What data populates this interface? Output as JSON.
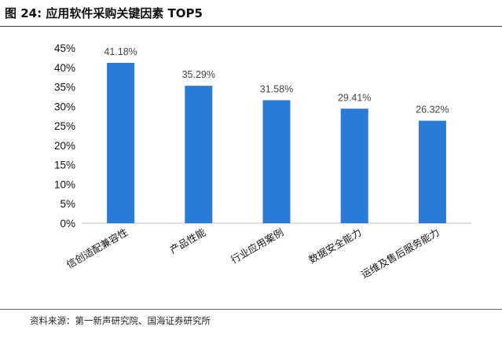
{
  "figure": {
    "title": "图 24:  应用软件采购关键因素 TOP5",
    "source": "资料来源：第一新声研究院、国海证券研究所"
  },
  "colors": {
    "bar": "#2a7bd5",
    "axis": "#bfbfbf"
  },
  "chart_data": {
    "type": "bar",
    "categories": [
      "信创适配兼容性",
      "产品性能",
      "行业应用案例",
      "数据安全能力",
      "运维及售后服务能力"
    ],
    "values": [
      41.18,
      35.29,
      31.58,
      29.41,
      26.32
    ],
    "value_labels": [
      "41.18%",
      "35.29%",
      "31.58%",
      "29.41%",
      "26.32%"
    ],
    "y_ticks": [
      "0%",
      "5%",
      "10%",
      "15%",
      "20%",
      "25%",
      "30%",
      "35%",
      "40%",
      "45%"
    ],
    "ylim": [
      0,
      45
    ],
    "grid": false,
    "legend": "none"
  }
}
